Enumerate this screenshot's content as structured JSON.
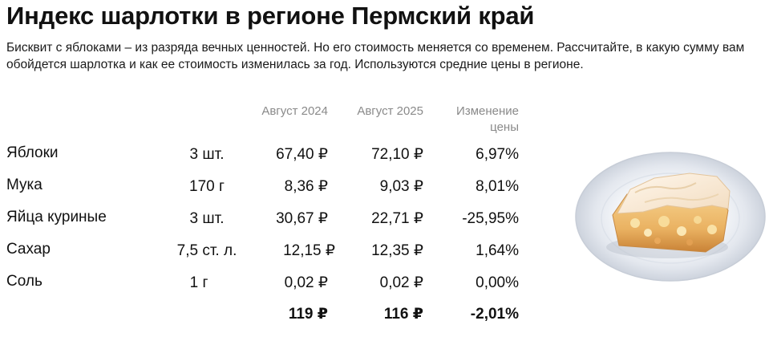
{
  "header": {
    "title": "Индекс шарлотки в регионе Пермский край",
    "subtitle_line1": "Бисквит с яблоками – из разряда вечных ценностей. Но его стоимость меняется со временем. Рассчитайте, в какую сумму вам",
    "subtitle_line2": "обойдется шарлотка и как ее стоимость изменилась за год. Используются средние цены в регионе."
  },
  "table": {
    "columns": {
      "aug2024": "Август 2024",
      "aug2025": "Август 2025",
      "change_line1": "Изменение",
      "change_line2": "цены"
    },
    "rows": [
      {
        "name": "Яблоки",
        "qty": "3 шт.",
        "aug2024": "67,40 ₽",
        "aug2025": "72,10 ₽",
        "change": "6,97%"
      },
      {
        "name": "Мука",
        "qty": "170 г",
        "aug2024": "8,36 ₽",
        "aug2025": "9,03 ₽",
        "change": "8,01%"
      },
      {
        "name": "Яйца куриные",
        "qty": "3 шт.",
        "aug2024": "30,67 ₽",
        "aug2025": "22,71 ₽",
        "change": "-25,95%"
      },
      {
        "name": "Сахар",
        "qty": "7,5 ст. л.",
        "aug2024": "12,15 ₽",
        "aug2025": "12,35 ₽",
        "change": "1,64%"
      },
      {
        "name": "Соль",
        "qty": "1 г",
        "aug2024": "0,02 ₽",
        "aug2025": "0,02 ₽",
        "change": "0,00%"
      }
    ],
    "totals": {
      "aug2024": "119 ₽",
      "aug2025": "116 ₽",
      "change": "-2,01%"
    }
  },
  "image": {
    "icon": "charlotte-cake-on-plate-illustration"
  }
}
